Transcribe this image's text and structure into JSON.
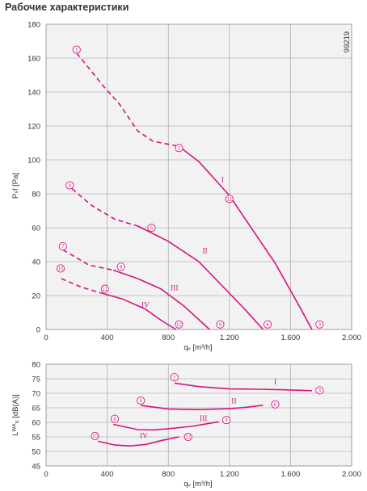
{
  "title": "Рабочие характеристики",
  "figure_code": "99219",
  "chart_data": [
    {
      "type": "line",
      "xlabel": "qᵥ [m³/h]",
      "ylabel": "Pₛf [Pa]",
      "xlim": [
        0,
        2000
      ],
      "ylim": [
        0,
        180
      ],
      "x_ticks": [
        "0",
        "400",
        "800",
        "1.200",
        "1.600",
        "2.000"
      ],
      "y_ticks": [
        "0",
        "20",
        "40",
        "60",
        "80",
        "100",
        "120",
        "140",
        "160",
        "180"
      ],
      "grid": true,
      "series": [
        {
          "name": "I",
          "dashed": [
            [
              200,
              163
            ],
            [
              380,
              143
            ],
            [
              480,
              133
            ],
            [
              600,
              117
            ],
            [
              700,
              111
            ],
            [
              870,
              108
            ]
          ],
          "solid": [
            [
              870,
              108
            ],
            [
              1000,
              99
            ],
            [
              1150,
              84
            ],
            [
              1200,
              79
            ],
            [
              1350,
              59
            ],
            [
              1500,
              39
            ],
            [
              1650,
              15
            ],
            [
              1740,
              0
            ]
          ]
        },
        {
          "name": "II",
          "dashed": [
            [
              170,
              83
            ],
            [
              300,
              73
            ],
            [
              450,
              65
            ],
            [
              600,
              61
            ]
          ],
          "solid": [
            [
              600,
              61
            ],
            [
              800,
              52
            ],
            [
              1000,
              40
            ],
            [
              1150,
              26
            ],
            [
              1300,
              12
            ],
            [
              1420,
              0
            ]
          ]
        },
        {
          "name": "III",
          "dashed": [
            [
              110,
              47
            ],
            [
              280,
              38
            ],
            [
              440,
              35
            ]
          ],
          "solid": [
            [
              440,
              35
            ],
            [
              600,
              30
            ],
            [
              750,
              24
            ],
            [
              900,
              14
            ],
            [
              1010,
              5
            ],
            [
              1070,
              0
            ]
          ]
        },
        {
          "name": "IV",
          "dashed": [
            [
              100,
              30
            ],
            [
              230,
              25
            ],
            [
              380,
              21
            ]
          ],
          "solid": [
            [
              380,
              21
            ],
            [
              500,
              18
            ],
            [
              650,
              12
            ],
            [
              760,
              5
            ],
            [
              850,
              0
            ]
          ]
        }
      ],
      "markers": [
        {
          "label": "1",
          "x": 200,
          "y": 165
        },
        {
          "label": "2",
          "x": 870,
          "y": 107
        },
        {
          "label": "11",
          "x": 1200,
          "y": 77
        },
        {
          "label": "3",
          "x": 1790,
          "y": 3
        },
        {
          "label": "4",
          "x": 155,
          "y": 85
        },
        {
          "label": "5",
          "x": 690,
          "y": 60
        },
        {
          "label": "6",
          "x": 1450,
          "y": 3
        },
        {
          "label": "7",
          "x": 110,
          "y": 49
        },
        {
          "label": "8",
          "x": 490,
          "y": 37
        },
        {
          "label": "9",
          "x": 1140,
          "y": 3
        },
        {
          "label": "10",
          "x": 95,
          "y": 36
        },
        {
          "label": "11",
          "x": 385,
          "y": 24
        },
        {
          "label": "12",
          "x": 870,
          "y": 3
        }
      ],
      "annotations": [
        {
          "text": "I",
          "x": 1155,
          "y": 87
        },
        {
          "text": "II",
          "x": 1040,
          "y": 45
        },
        {
          "text": "III",
          "x": 840,
          "y": 23
        },
        {
          "text": "IV",
          "x": 650,
          "y": 13
        }
      ]
    },
    {
      "type": "line",
      "xlabel": "qᵥ [m³/h]",
      "ylabel": "Lᵂᴬ₆ [dB(A)]",
      "xlim": [
        0,
        2000
      ],
      "ylim": [
        45,
        80
      ],
      "x_ticks": [
        "0",
        "400",
        "800",
        "1.200",
        "1.600",
        "2.000"
      ],
      "y_ticks": [
        "45",
        "50",
        "55",
        "60",
        "65",
        "70",
        "75",
        "80"
      ],
      "grid": true,
      "series": [
        {
          "name": "I",
          "values": [
            [
              840,
              73.5
            ],
            [
              1000,
              72.3
            ],
            [
              1200,
              71.5
            ],
            [
              1400,
              71.4
            ],
            [
              1560,
              71.2
            ],
            [
              1740,
              70.9
            ]
          ]
        },
        {
          "name": "II",
          "values": [
            [
              620,
              65.8
            ],
            [
              800,
              64.6
            ],
            [
              1000,
              64.4
            ],
            [
              1200,
              64.7
            ],
            [
              1300,
              65.1
            ],
            [
              1420,
              65.9
            ]
          ]
        },
        {
          "name": "III",
          "values": [
            [
              440,
              59.3
            ],
            [
              600,
              57.5
            ],
            [
              700,
              57.4
            ],
            [
              800,
              57.8
            ],
            [
              950,
              58.6
            ],
            [
              1130,
              60.2
            ]
          ]
        },
        {
          "name": "IV",
          "values": [
            [
              340,
              53.5
            ],
            [
              450,
              52.2
            ],
            [
              550,
              51.9
            ],
            [
              650,
              52.4
            ],
            [
              750,
              53.7
            ],
            [
              870,
              55.0
            ]
          ]
        }
      ],
      "markers": [
        {
          "label": "2",
          "x": 840,
          "y": 75.5
        },
        {
          "label": "3",
          "x": 1790,
          "y": 71
        },
        {
          "label": "5",
          "x": 620,
          "y": 67.5
        },
        {
          "label": "6",
          "x": 1500,
          "y": 66.2
        },
        {
          "label": "8",
          "x": 450,
          "y": 61.2
        },
        {
          "label": "9",
          "x": 1180,
          "y": 60.8
        },
        {
          "label": "10",
          "x": 320,
          "y": 55.3
        },
        {
          "label": "12",
          "x": 930,
          "y": 55.0
        }
      ],
      "annotations": [
        {
          "text": "I",
          "x": 1500,
          "y": 73.0
        },
        {
          "text": "II",
          "x": 1230,
          "y": 66.5
        },
        {
          "text": "III",
          "x": 1030,
          "y": 60.5
        },
        {
          "text": "IV",
          "x": 640,
          "y": 54.6
        }
      ]
    }
  ]
}
